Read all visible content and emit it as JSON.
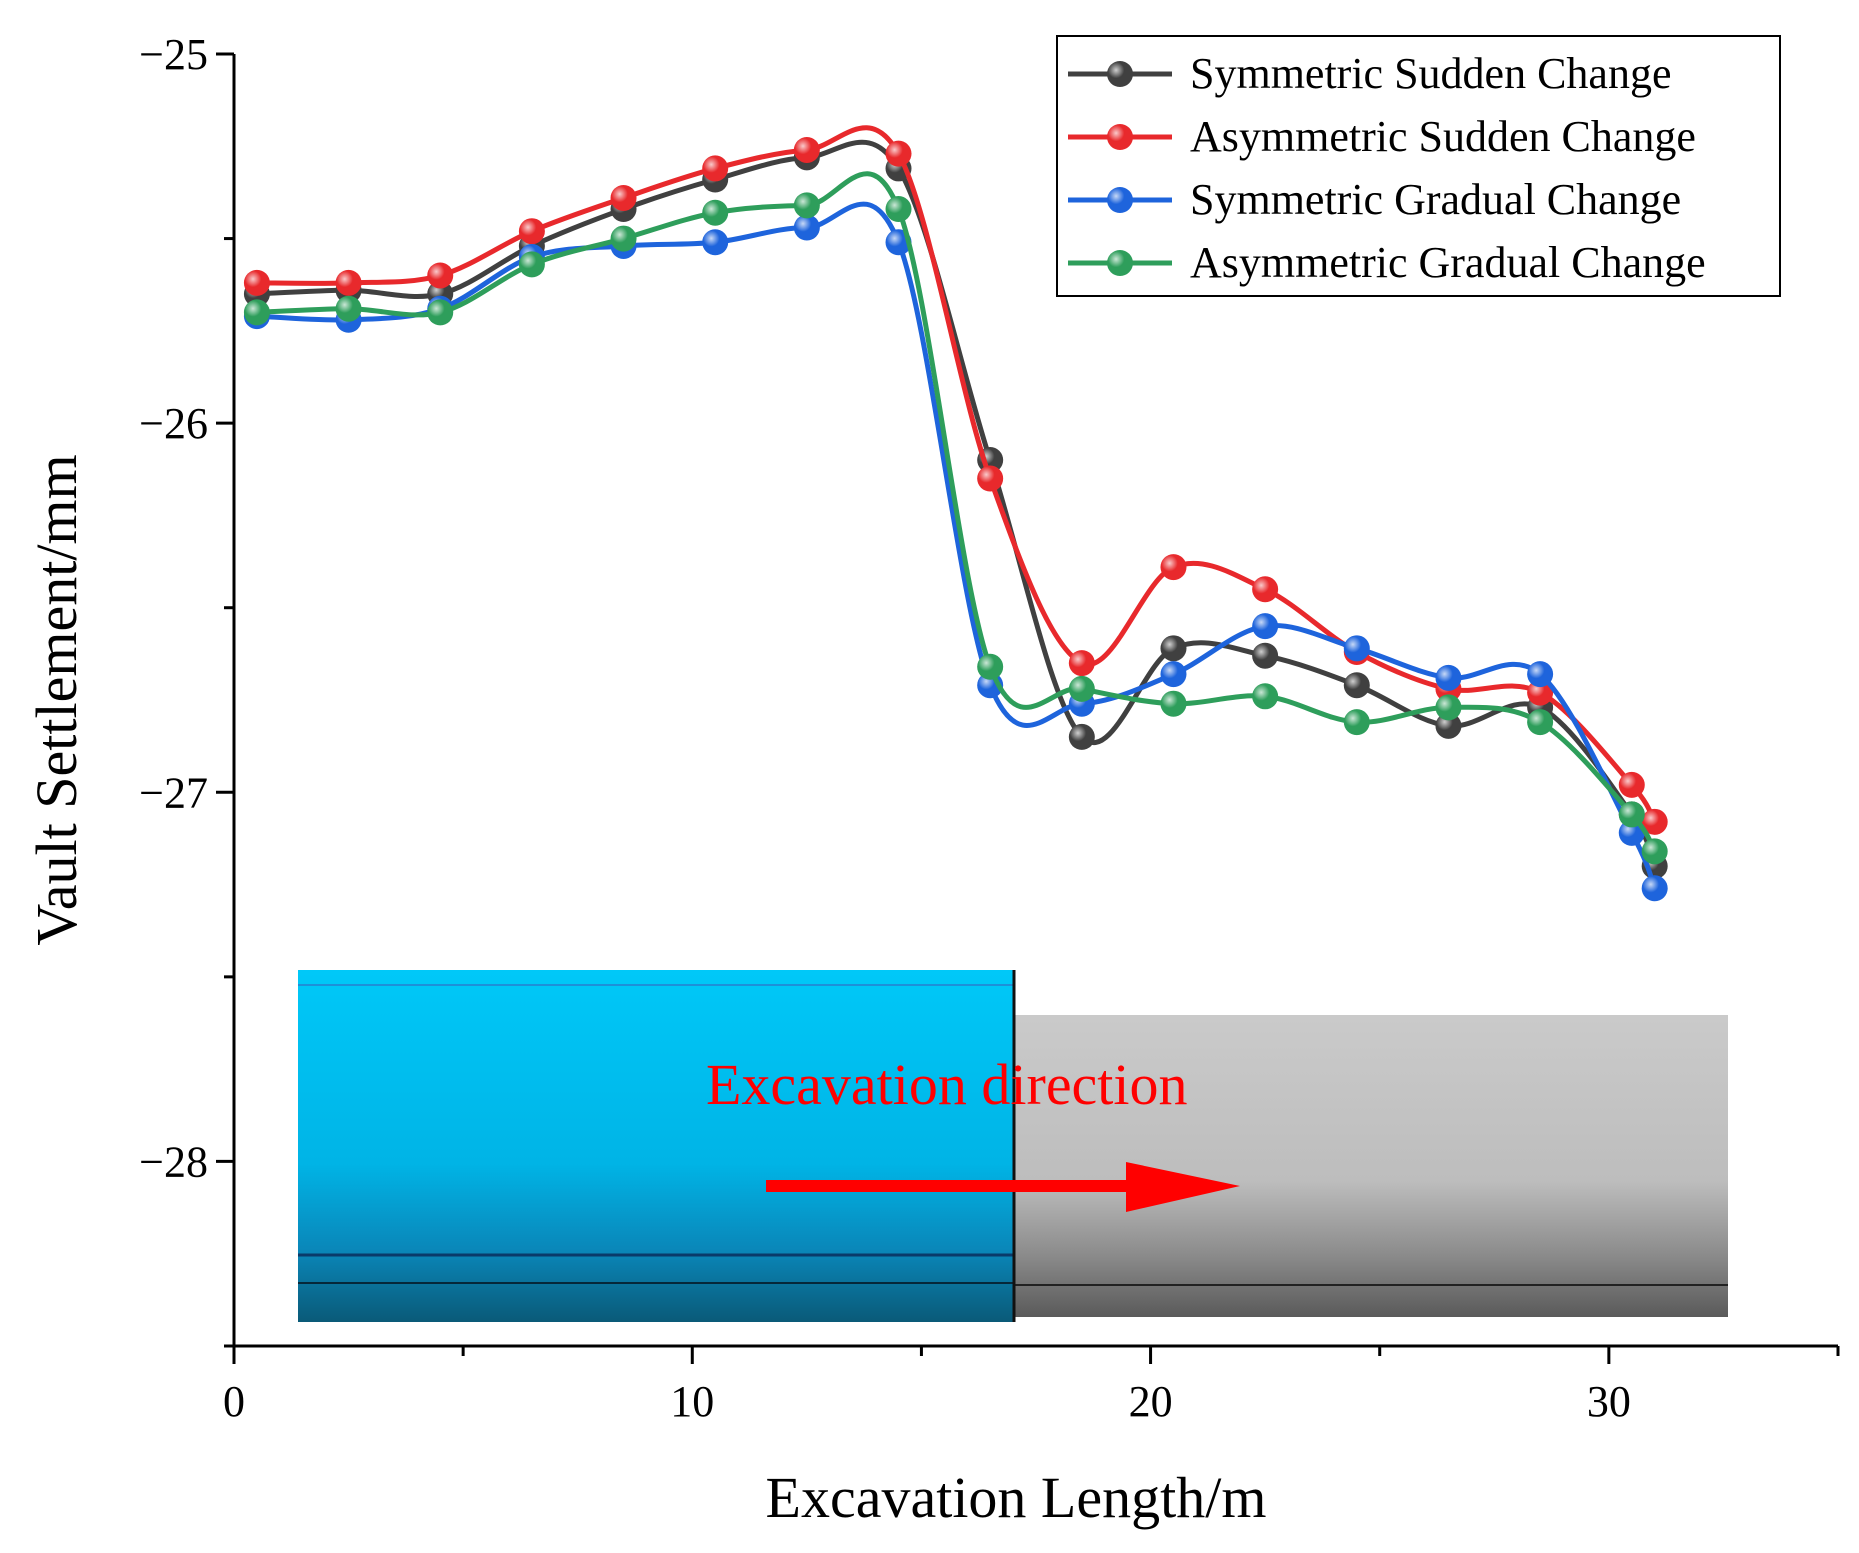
{
  "chart_data": {
    "type": "line",
    "title": "",
    "xlabel": "Excavation Length/m",
    "ylabel": "Vault Settlement/mm",
    "xlim": [
      0,
      35
    ],
    "ylim": [
      -28.5,
      -25
    ],
    "y_inverted": true,
    "x_ticks": [
      0,
      10,
      20,
      30
    ],
    "x_tick_labels": [
      "0",
      "10",
      "20",
      "30"
    ],
    "y_ticks": [
      -25,
      -26,
      -27,
      -28
    ],
    "y_tick_labels": [
      "−25",
      "−26",
      "−27",
      "−28"
    ],
    "grid": false,
    "legend_position": "top-right",
    "series": [
      {
        "name": "Symmetric Sudden Change",
        "color": "#404040",
        "x": [
          0.5,
          2.5,
          4.5,
          6.5,
          8.5,
          10.5,
          12.5,
          14.5,
          16.5,
          18.5,
          20.5,
          22.5,
          24.5,
          26.5,
          28.5,
          30.5,
          31.0
        ],
        "y": [
          -25.65,
          -25.64,
          -25.65,
          -25.52,
          -25.42,
          -25.34,
          -25.28,
          -25.31,
          -26.1,
          -26.85,
          -26.61,
          -26.63,
          -26.71,
          -26.82,
          -26.77,
          -27.06,
          -27.2
        ]
      },
      {
        "name": "Asymmetric Sudden Change",
        "color": "#e8292c",
        "x": [
          0.5,
          2.5,
          4.5,
          6.5,
          8.5,
          10.5,
          12.5,
          14.5,
          16.5,
          18.5,
          20.5,
          22.5,
          24.5,
          26.5,
          28.5,
          30.5,
          31.0
        ],
        "y": [
          -25.62,
          -25.62,
          -25.6,
          -25.48,
          -25.39,
          -25.31,
          -25.26,
          -25.27,
          -26.15,
          -26.65,
          -26.39,
          -26.45,
          -26.62,
          -26.72,
          -26.73,
          -26.98,
          -27.08
        ]
      },
      {
        "name": "Symmetric Gradual Change",
        "color": "#1e64dc",
        "x": [
          0.5,
          2.5,
          4.5,
          6.5,
          8.5,
          10.5,
          12.5,
          14.5,
          16.5,
          18.5,
          20.5,
          22.5,
          24.5,
          26.5,
          28.5,
          30.5,
          31.0
        ],
        "y": [
          -25.71,
          -25.72,
          -25.69,
          -25.55,
          -25.52,
          -25.51,
          -25.47,
          -25.51,
          -26.71,
          -26.76,
          -26.68,
          -26.55,
          -26.61,
          -26.69,
          -26.68,
          -27.11,
          -27.26
        ]
      },
      {
        "name": "Asymmetric Gradual Change",
        "color": "#2e9e5b",
        "x": [
          0.5,
          2.5,
          4.5,
          6.5,
          8.5,
          10.5,
          12.5,
          14.5,
          16.5,
          18.5,
          20.5,
          22.5,
          24.5,
          26.5,
          28.5,
          30.5,
          31.0
        ],
        "y": [
          -25.7,
          -25.69,
          -25.7,
          -25.57,
          -25.5,
          -25.43,
          -25.41,
          -25.42,
          -26.66,
          -26.72,
          -26.76,
          -26.74,
          -26.81,
          -26.77,
          -26.81,
          -27.06,
          -27.16
        ]
      }
    ],
    "inset": {
      "annotation": "Excavation direction",
      "arrow_direction": "right",
      "annotation_color": "#ff0000",
      "excavated_section_color": "#00c8f8",
      "unexcavated_section_color": "#c8c8c8"
    }
  }
}
